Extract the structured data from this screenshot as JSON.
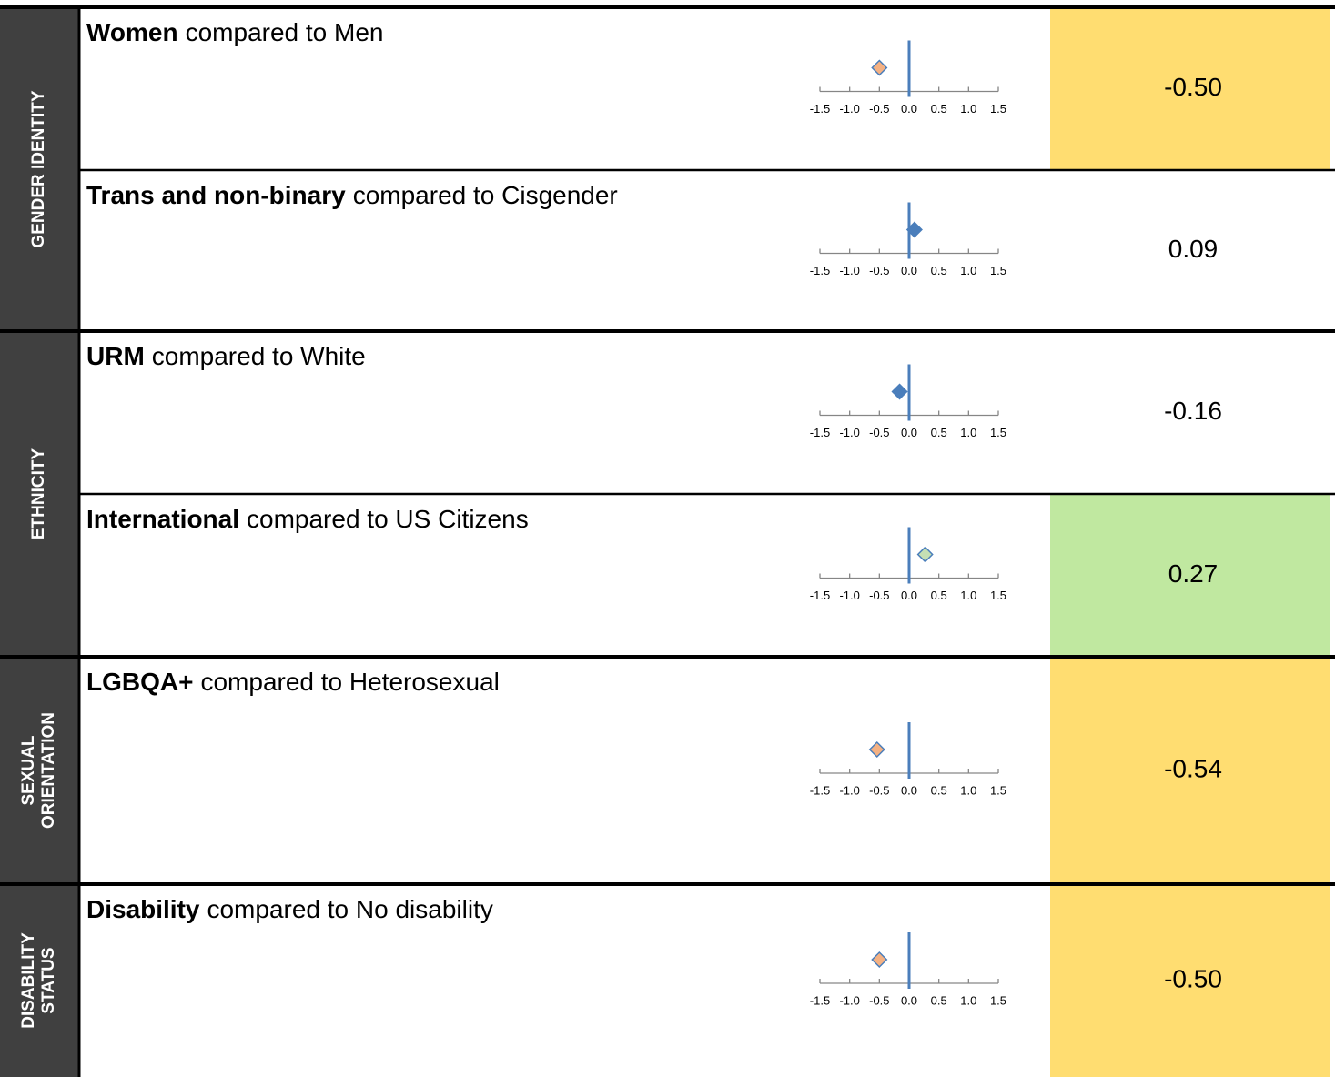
{
  "axis": {
    "xlim": [
      -1.5,
      1.5
    ],
    "xticks": [
      {
        "value": -1.5,
        "label": "-1.5"
      },
      {
        "value": -1,
        "label": "-1.0"
      },
      {
        "value": -0.5,
        "label": "-0.5"
      },
      {
        "value": 0,
        "label": "0.0"
      },
      0.5,
      {
        "value": 1,
        "label": "1.0"
      },
      1.5
    ]
  },
  "groups": [
    {
      "label_lines": [
        "GENDER IDENTITY"
      ],
      "rows": [
        {
          "label_bold": "Women",
          "label_rest": "compared to Men",
          "value": -0.5,
          "value_label": "-0.50",
          "marker_fill": "#f4b183",
          "cell_color": "#ffdd71"
        },
        {
          "label_bold": "Trans and non-binary",
          "label_rest": "compared to Cisgender",
          "value": 0.09,
          "value_label": "0.09",
          "marker_fill": "#4a7ebb",
          "cell_color": "#ffffff"
        }
      ]
    },
    {
      "label_lines": [
        "ETHNICITY"
      ],
      "rows": [
        {
          "label_bold": "URM",
          "label_rest": "compared to White",
          "value": -0.16,
          "value_label": "-0.16",
          "marker_fill": "#4a7ebb",
          "cell_color": "#ffffff"
        },
        {
          "label_bold": "International",
          "label_rest": "compared to US Citizens",
          "value": 0.27,
          "value_label": "0.27",
          "marker_fill": "#c5e0b4",
          "cell_color": "#c0e8a0"
        }
      ]
    },
    {
      "label_lines": [
        "SEXUAL",
        "ORIENTATION"
      ],
      "rows": [
        {
          "label_bold": "LGBQA+",
          "label_rest": "compared to Heterosexual",
          "value": -0.54,
          "value_label": "-0.54",
          "marker_fill": "#f4b183",
          "cell_color": "#ffdd71"
        }
      ]
    },
    {
      "label_lines": [
        "DISABILITY",
        "STATUS"
      ],
      "rows": [
        {
          "label_bold": "Disability",
          "label_rest": "compared to No disability",
          "value": -0.5,
          "value_label": "-0.50",
          "marker_fill": "#f4b183",
          "cell_color": "#ffdd71"
        }
      ]
    }
  ]
}
